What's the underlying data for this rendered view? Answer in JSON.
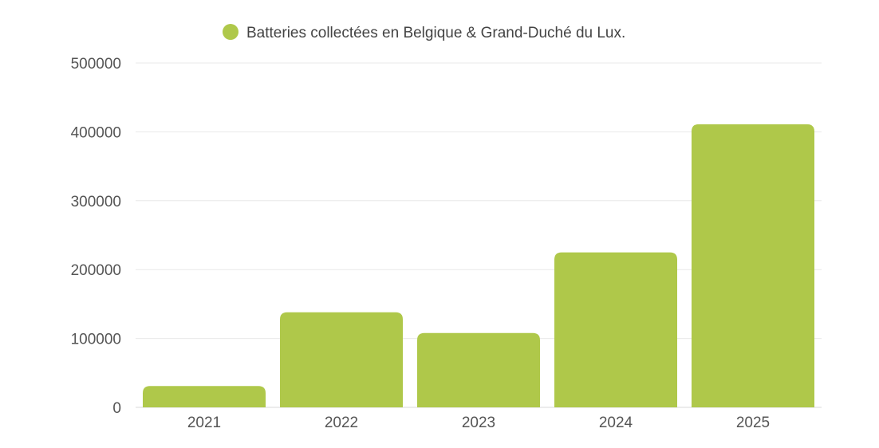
{
  "chart_data": {
    "type": "bar",
    "categories": [
      "2021",
      "2022",
      "2023",
      "2024",
      "2025"
    ],
    "series": [
      {
        "name": "Batteries collectées en Belgique & Grand-Duché du Lux.",
        "values": [
          31000,
          138000,
          108000,
          225000,
          411000
        ],
        "color": "#afc84a"
      }
    ],
    "ylim": [
      0,
      500000
    ],
    "yticks": [
      0,
      100000,
      200000,
      300000,
      400000,
      500000
    ],
    "ytick_labels": [
      "0",
      "100000",
      "200000",
      "300000",
      "400000",
      "500000"
    ],
    "grid": true,
    "legend_position": "top-center",
    "title": "",
    "xlabel": "",
    "ylabel": ""
  }
}
